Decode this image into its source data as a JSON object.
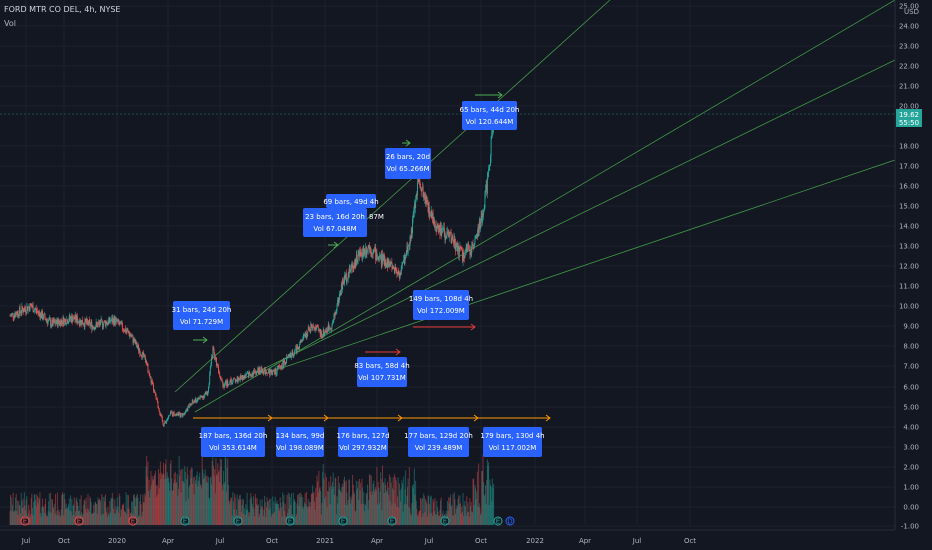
{
  "header": {
    "symbol_line": "FORD MTR CO DEL, 4h, NYSE",
    "volume_label": "Vol"
  },
  "price_axis": {
    "currency": "USD",
    "last_price": "19.62",
    "countdown": "55:50"
  },
  "colors": {
    "background": "#131722",
    "up": "#26a69a",
    "down": "#ef5350",
    "trendline": "#4caf50",
    "range_box": "#2962ff",
    "forecast_arrow": "#ff9800",
    "arrow_red": "#e53935",
    "arrow_green": "#4caf50",
    "price_label": "#26a69a"
  },
  "chart_data": {
    "type": "candlestick",
    "x_axis_labels": [
      "Jul",
      "Oct",
      "2020",
      "Apr",
      "Jul",
      "Oct",
      "2021",
      "Apr",
      "Jul",
      "Oct",
      "2022",
      "Apr",
      "Jul",
      "Oct"
    ],
    "y_axis_labels": [
      "25.00",
      "24.00",
      "23.00",
      "22.00",
      "21.00",
      "20.00",
      "18.00",
      "17.00",
      "16.00",
      "15.00",
      "14.00",
      "13.00",
      "12.00",
      "11.00",
      "10.00",
      "9.00",
      "8.00",
      "7.00",
      "6.00",
      "5.00",
      "4.00",
      "3.00",
      "2.00",
      "1.00",
      "0.00",
      "-1.00"
    ],
    "y_scale": "log",
    "price_path": [
      [
        0,
        9.5
      ],
      [
        0.4,
        10.0
      ],
      [
        0.8,
        9.1
      ],
      [
        1.2,
        9.4
      ],
      [
        1.6,
        9.0
      ],
      [
        2.0,
        9.3
      ],
      [
        2.3,
        8.6
      ],
      [
        2.6,
        7.3
      ],
      [
        2.8,
        5.5
      ],
      [
        2.95,
        4.1
      ],
      [
        3.1,
        4.7
      ],
      [
        3.3,
        4.6
      ],
      [
        3.5,
        5.2
      ],
      [
        3.8,
        5.7
      ],
      [
        3.9,
        7.8
      ],
      [
        4.1,
        6.1
      ],
      [
        4.4,
        6.4
      ],
      [
        4.8,
        6.8
      ],
      [
        5.1,
        6.7
      ],
      [
        5.5,
        7.8
      ],
      [
        5.8,
        9.0
      ],
      [
        6.0,
        8.6
      ],
      [
        6.2,
        9.1
      ],
      [
        6.4,
        11.2
      ],
      [
        6.7,
        12.5
      ],
      [
        6.9,
        13.0
      ],
      [
        7.1,
        12.4
      ],
      [
        7.3,
        12.1
      ],
      [
        7.5,
        11.6
      ],
      [
        7.7,
        13.4
      ],
      [
        7.85,
        16.2
      ],
      [
        8.0,
        15.2
      ],
      [
        8.2,
        14.0
      ],
      [
        8.5,
        13.3
      ],
      [
        8.7,
        12.5
      ],
      [
        8.9,
        13.0
      ],
      [
        9.05,
        14.1
      ],
      [
        9.2,
        16.5
      ],
      [
        9.3,
        19.6
      ]
    ],
    "volume_label": "Vol",
    "ranges": [
      {
        "line1": "31 bars, 24d 20h",
        "line2": "Vol 71.729M"
      },
      {
        "line1": "69 bars, 49d 4h",
        "line2": ""
      },
      {
        "line1": "23 bars, 16d 20h",
        "line2": "Vol 67.048M",
        "partial": "87M"
      },
      {
        "line1": "26 bars, 20d",
        "line2": "Vol 65.266M"
      },
      {
        "line1": "65 bars, 44d 20h",
        "line2": "Vol 120.644M"
      },
      {
        "line1": "149 bars, 108d 4h",
        "line2": "Vol 172.009M"
      },
      {
        "line1": "83 bars, 58d 4h",
        "line2": "Vol 107.731M"
      },
      {
        "line1": "187 bars, 136d 20h",
        "line2": "Vol 353.614M"
      },
      {
        "line1": "134 bars, 99d",
        "line2": "Vol 198.089M"
      },
      {
        "line1": "176 bars, 127d",
        "line2": "Vol 297.932M"
      },
      {
        "line1": "177 bars, 129d 20h",
        "line2": "Vol 239.489M"
      },
      {
        "line1": "179 bars, 130d 4h",
        "line2": "Vol 117.002M"
      }
    ],
    "event_markers": [
      "E",
      "E",
      "E",
      "E",
      "E",
      "E",
      "E",
      "E",
      "E",
      "E",
      "E",
      "E",
      "E",
      "D"
    ]
  }
}
